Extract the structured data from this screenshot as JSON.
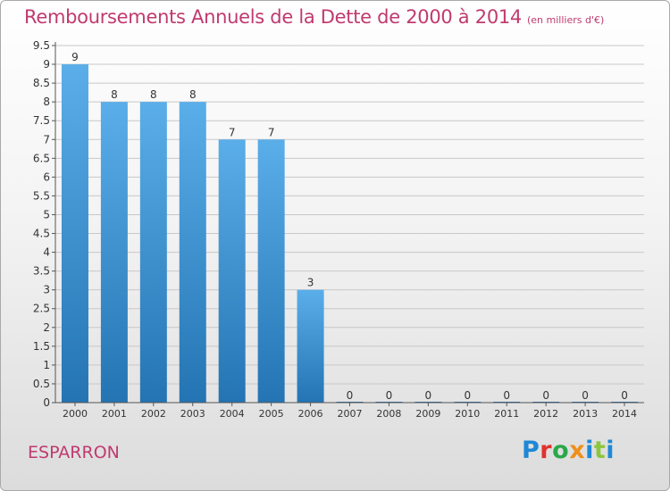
{
  "header": {
    "title": "Remboursements Annuels de la Dette de 2000 à 2014",
    "unit": "(en milliers d'€)"
  },
  "commune": "ESPARRON",
  "logo": {
    "letters": [
      "P",
      "r",
      "o",
      "x",
      "i",
      "t",
      "i"
    ]
  },
  "colors": {
    "title": "#c03a6e",
    "bar_top": "#5aaee9",
    "bar_bottom": "#2474b3",
    "grid": "#c8c8c8"
  },
  "chart_data": {
    "type": "bar",
    "title": "Remboursements Annuels de la Dette de 2000 à 2014",
    "xlabel": "",
    "ylabel": "",
    "categories": [
      "2000",
      "2001",
      "2002",
      "2003",
      "2004",
      "2005",
      "2006",
      "2007",
      "2008",
      "2009",
      "2010",
      "2011",
      "2012",
      "2013",
      "2014"
    ],
    "values": [
      9,
      8,
      8,
      8,
      7,
      7,
      3,
      0,
      0,
      0,
      0,
      0,
      0,
      0,
      0
    ],
    "data_labels": [
      "9",
      "8",
      "8",
      "8",
      "7",
      "7",
      "3",
      "0",
      "0",
      "0",
      "0",
      "0",
      "0",
      "0",
      "0"
    ],
    "ylim": [
      0,
      9.5
    ],
    "yticks": [
      "0",
      "0.5",
      "1",
      "1.5",
      "2",
      "2.5",
      "3",
      "3.5",
      "4",
      "4.5",
      "5",
      "5.5",
      "6",
      "6.5",
      "7",
      "7.5",
      "8",
      "8.5",
      "9",
      "9.5"
    ],
    "grid": true,
    "legend": "none"
  }
}
